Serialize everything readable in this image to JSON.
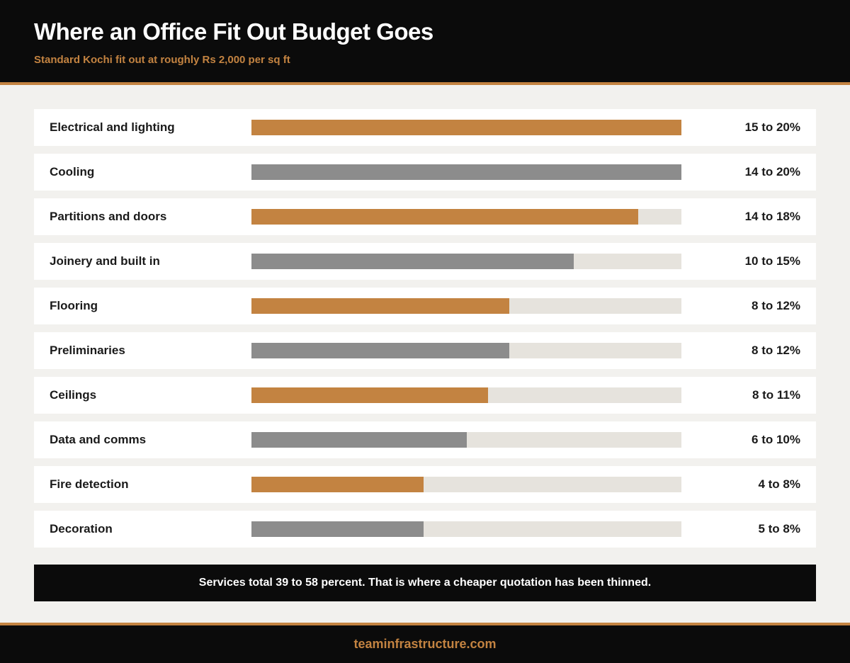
{
  "header": {
    "title": "Where an Office Fit Out Budget Goes",
    "subtitle": "Standard Kochi fit out at roughly Rs 2,000 per sq ft"
  },
  "colors": {
    "accent": "#c38341",
    "neutral_bar": "#8c8c8c",
    "track": "#e6e3dd",
    "dark": "#0b0b0b",
    "background": "#f2f1ee"
  },
  "chart_data": {
    "type": "bar",
    "orientation": "horizontal",
    "title": "Where an Office Fit Out Budget Goes",
    "subtitle": "Standard Kochi fit out at roughly Rs 2,000 per sq ft",
    "xlim": [
      0,
      20
    ],
    "unit": "percent of budget",
    "categories": [
      "Electrical and lighting",
      "Cooling",
      "Partitions and doors",
      "Joinery and built in",
      "Flooring",
      "Preliminaries",
      "Ceilings",
      "Data and comms",
      "Fire detection",
      "Decoration"
    ],
    "ranges": [
      [
        15,
        20
      ],
      [
        14,
        20
      ],
      [
        14,
        18
      ],
      [
        10,
        15
      ],
      [
        8,
        12
      ],
      [
        8,
        12
      ],
      [
        8,
        11
      ],
      [
        6,
        10
      ],
      [
        4,
        8
      ],
      [
        5,
        8
      ]
    ],
    "values": [
      20,
      20,
      18,
      15,
      12,
      12,
      11,
      10,
      8,
      8
    ],
    "value_labels": [
      "15 to 20%",
      "14 to 20%",
      "14 to 18%",
      "10 to 15%",
      "8 to 12%",
      "8 to 12%",
      "8 to 11%",
      "6 to 10%",
      "4 to 8%",
      "5 to 8%"
    ],
    "bar_colors": [
      "#c38341",
      "#8c8c8c",
      "#c38341",
      "#8c8c8c",
      "#c38341",
      "#8c8c8c",
      "#c38341",
      "#8c8c8c",
      "#c38341",
      "#8c8c8c"
    ],
    "grid": false,
    "legend": "none"
  },
  "note": "Services total 39 to 58 percent. That is where a cheaper quotation has been thinned.",
  "footer": {
    "site": "teaminfrastructure.com"
  }
}
